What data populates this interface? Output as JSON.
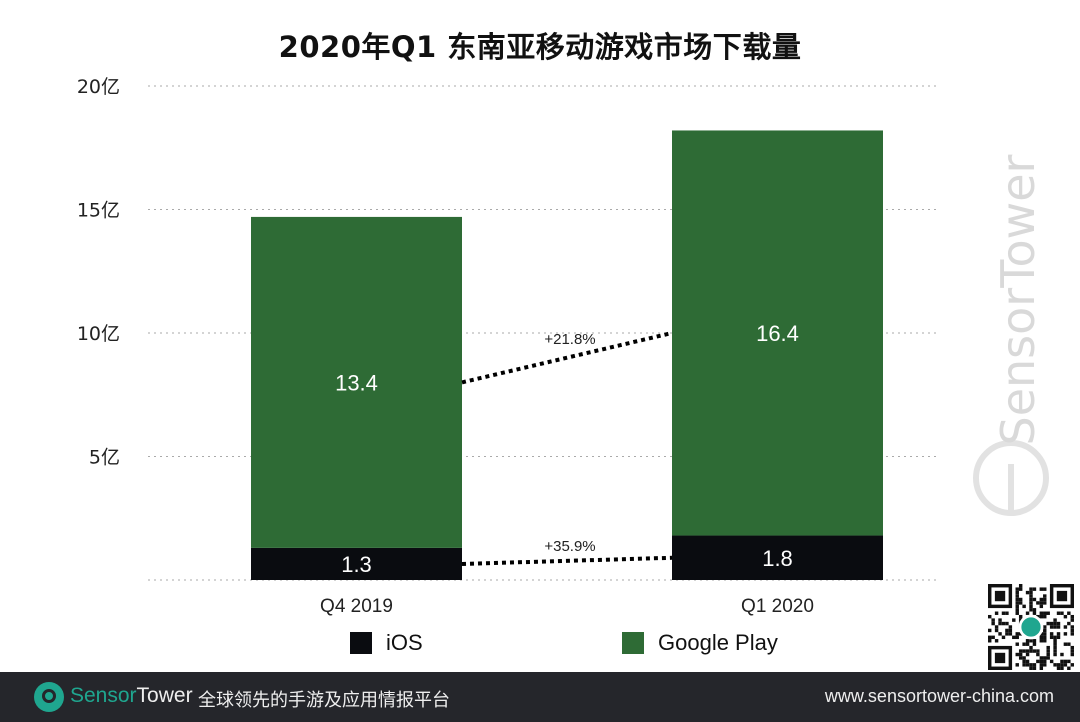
{
  "chart_data": {
    "type": "bar",
    "stacked": true,
    "title": "2020年Q1 东南亚移动游戏市场下载量",
    "categories": [
      "Q4  2019",
      "Q1 2020"
    ],
    "series": [
      {
        "name": "iOS",
        "values": [
          1.3,
          1.8
        ],
        "color": "#0a0c10",
        "label_color": "#ffffff"
      },
      {
        "name": "Google Play",
        "values": [
          13.4,
          16.4
        ],
        "color": "#2e6b35",
        "label_color": "#ffffff"
      }
    ],
    "y_ticks": [
      {
        "value": 5,
        "label": "5亿"
      },
      {
        "value": 10,
        "label": "10亿"
      },
      {
        "value": 15,
        "label": "15亿"
      },
      {
        "value": 20,
        "label": "20亿"
      }
    ],
    "ylim": [
      0,
      20
    ],
    "unit": "亿",
    "grid": "dotted horizontal",
    "legend_position": "bottom",
    "annotations": [
      {
        "series": "Google Play",
        "text": "+21.8%"
      },
      {
        "series": "iOS",
        "text": "+35.9%"
      }
    ]
  },
  "watermark": "SensorTower",
  "footer": {
    "brand_part1": "Sensor",
    "brand_part2": "Tower",
    "tagline": "全球领先的手游及应用情报平台",
    "url": "www.sensortower-china.com",
    "brand_color": "#1fa68f",
    "background": "#25262b"
  }
}
